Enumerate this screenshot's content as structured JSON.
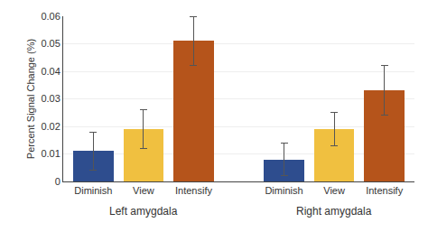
{
  "chart_data": {
    "type": "bar",
    "categories": [
      "Diminish",
      "View",
      "Intensify",
      "Diminish",
      "View",
      "Intensify"
    ],
    "values": [
      0.011,
      0.019,
      0.051,
      0.008,
      0.019,
      0.033
    ],
    "errors": [
      0.007,
      0.007,
      0.009,
      0.006,
      0.006,
      0.009
    ],
    "colors": [
      "#2E4D8E",
      "#F0C040",
      "#B5541B",
      "#2E4D8E",
      "#F0C040",
      "#B5541B"
    ],
    "annotations": [
      "Left amygdala",
      "Right amygdala"
    ],
    "ylabel": "Percent Signal Change (%)",
    "ylim": [
      0,
      0.06
    ],
    "yticks": [
      0,
      0.01,
      0.02,
      0.03,
      0.04,
      0.05,
      0.06
    ],
    "grid": true
  }
}
